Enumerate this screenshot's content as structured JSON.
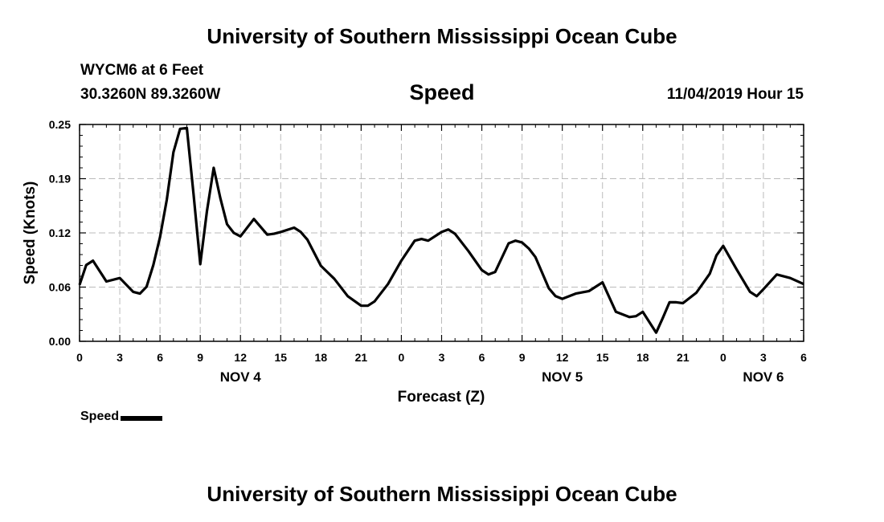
{
  "header": {
    "title": "University of Southern Mississippi Ocean Cube",
    "station": "WYCM6 at 6 Feet",
    "coords": "30.3260N 89.3260W",
    "datetime": "11/04/2019 Hour 15"
  },
  "footer": {
    "title": "University of Southern Mississippi Ocean Cube"
  },
  "legend": {
    "label": "Speed"
  },
  "colors": {
    "line": "#000000",
    "grid": "#bbbbbb"
  },
  "chart_data": {
    "type": "line",
    "title": "Speed",
    "xlabel": "Forecast (Z)",
    "ylabel": "Speed (Knots)",
    "xlim": [
      0,
      54
    ],
    "ylim": [
      0,
      0.25
    ],
    "grid": true,
    "legend_position": "bottom-left",
    "y_ticks": [
      {
        "value": 0.0,
        "label": "0.00"
      },
      {
        "value": 0.0625,
        "label": "0.06"
      },
      {
        "value": 0.125,
        "label": "0.12"
      },
      {
        "value": 0.1875,
        "label": "0.19"
      },
      {
        "value": 0.25,
        "label": "0.25"
      }
    ],
    "x_ticks": [
      {
        "value": 0,
        "label": "0"
      },
      {
        "value": 3,
        "label": "3"
      },
      {
        "value": 6,
        "label": "6"
      },
      {
        "value": 9,
        "label": "9"
      },
      {
        "value": 12,
        "label": "12"
      },
      {
        "value": 15,
        "label": "15"
      },
      {
        "value": 18,
        "label": "18"
      },
      {
        "value": 21,
        "label": "21"
      },
      {
        "value": 24,
        "label": "0"
      },
      {
        "value": 27,
        "label": "3"
      },
      {
        "value": 30,
        "label": "6"
      },
      {
        "value": 33,
        "label": "9"
      },
      {
        "value": 36,
        "label": "12"
      },
      {
        "value": 39,
        "label": "15"
      },
      {
        "value": 42,
        "label": "18"
      },
      {
        "value": 45,
        "label": "21"
      },
      {
        "value": 48,
        "label": "0"
      },
      {
        "value": 51,
        "label": "3"
      },
      {
        "value": 54,
        "label": "6"
      }
    ],
    "date_labels": [
      {
        "value": 12,
        "label": "NOV 4"
      },
      {
        "value": 36,
        "label": "NOV 5"
      },
      {
        "value": 51,
        "label": "NOV 6"
      }
    ],
    "series": [
      {
        "name": "Speed",
        "x": [
          0,
          0.5,
          1,
          2,
          3,
          4,
          4.5,
          5,
          5.5,
          6,
          6.5,
          7,
          7.5,
          8,
          8.5,
          9,
          9.5,
          10,
          10.5,
          11,
          11.5,
          12,
          13,
          14,
          14.5,
          15,
          16,
          16.5,
          17,
          18,
          19,
          20,
          21,
          21.5,
          22,
          23,
          24,
          25,
          25.5,
          26,
          27,
          27.5,
          28,
          29,
          30,
          30.5,
          31,
          32,
          32.5,
          33,
          33.5,
          34,
          35,
          35.5,
          36,
          37,
          38,
          39,
          40,
          41,
          41.5,
          42,
          43,
          43.5,
          44,
          44.5,
          45,
          46,
          47,
          47.5,
          48,
          49,
          50,
          50.5,
          51,
          52,
          53,
          54
        ],
        "values": [
          0.065,
          0.088,
          0.093,
          0.069,
          0.073,
          0.057,
          0.055,
          0.063,
          0.088,
          0.12,
          0.163,
          0.218,
          0.245,
          0.246,
          0.17,
          0.089,
          0.15,
          0.2,
          0.165,
          0.135,
          0.125,
          0.121,
          0.141,
          0.123,
          0.124,
          0.126,
          0.131,
          0.126,
          0.117,
          0.087,
          0.072,
          0.052,
          0.041,
          0.041,
          0.046,
          0.066,
          0.093,
          0.116,
          0.118,
          0.116,
          0.126,
          0.129,
          0.124,
          0.104,
          0.082,
          0.077,
          0.08,
          0.113,
          0.116,
          0.114,
          0.107,
          0.097,
          0.061,
          0.052,
          0.049,
          0.055,
          0.058,
          0.068,
          0.034,
          0.028,
          0.029,
          0.034,
          0.01,
          0.027,
          0.045,
          0.045,
          0.044,
          0.056,
          0.078,
          0.099,
          0.11,
          0.083,
          0.057,
          0.052,
          0.06,
          0.077,
          0.073,
          0.066
        ]
      }
    ]
  }
}
